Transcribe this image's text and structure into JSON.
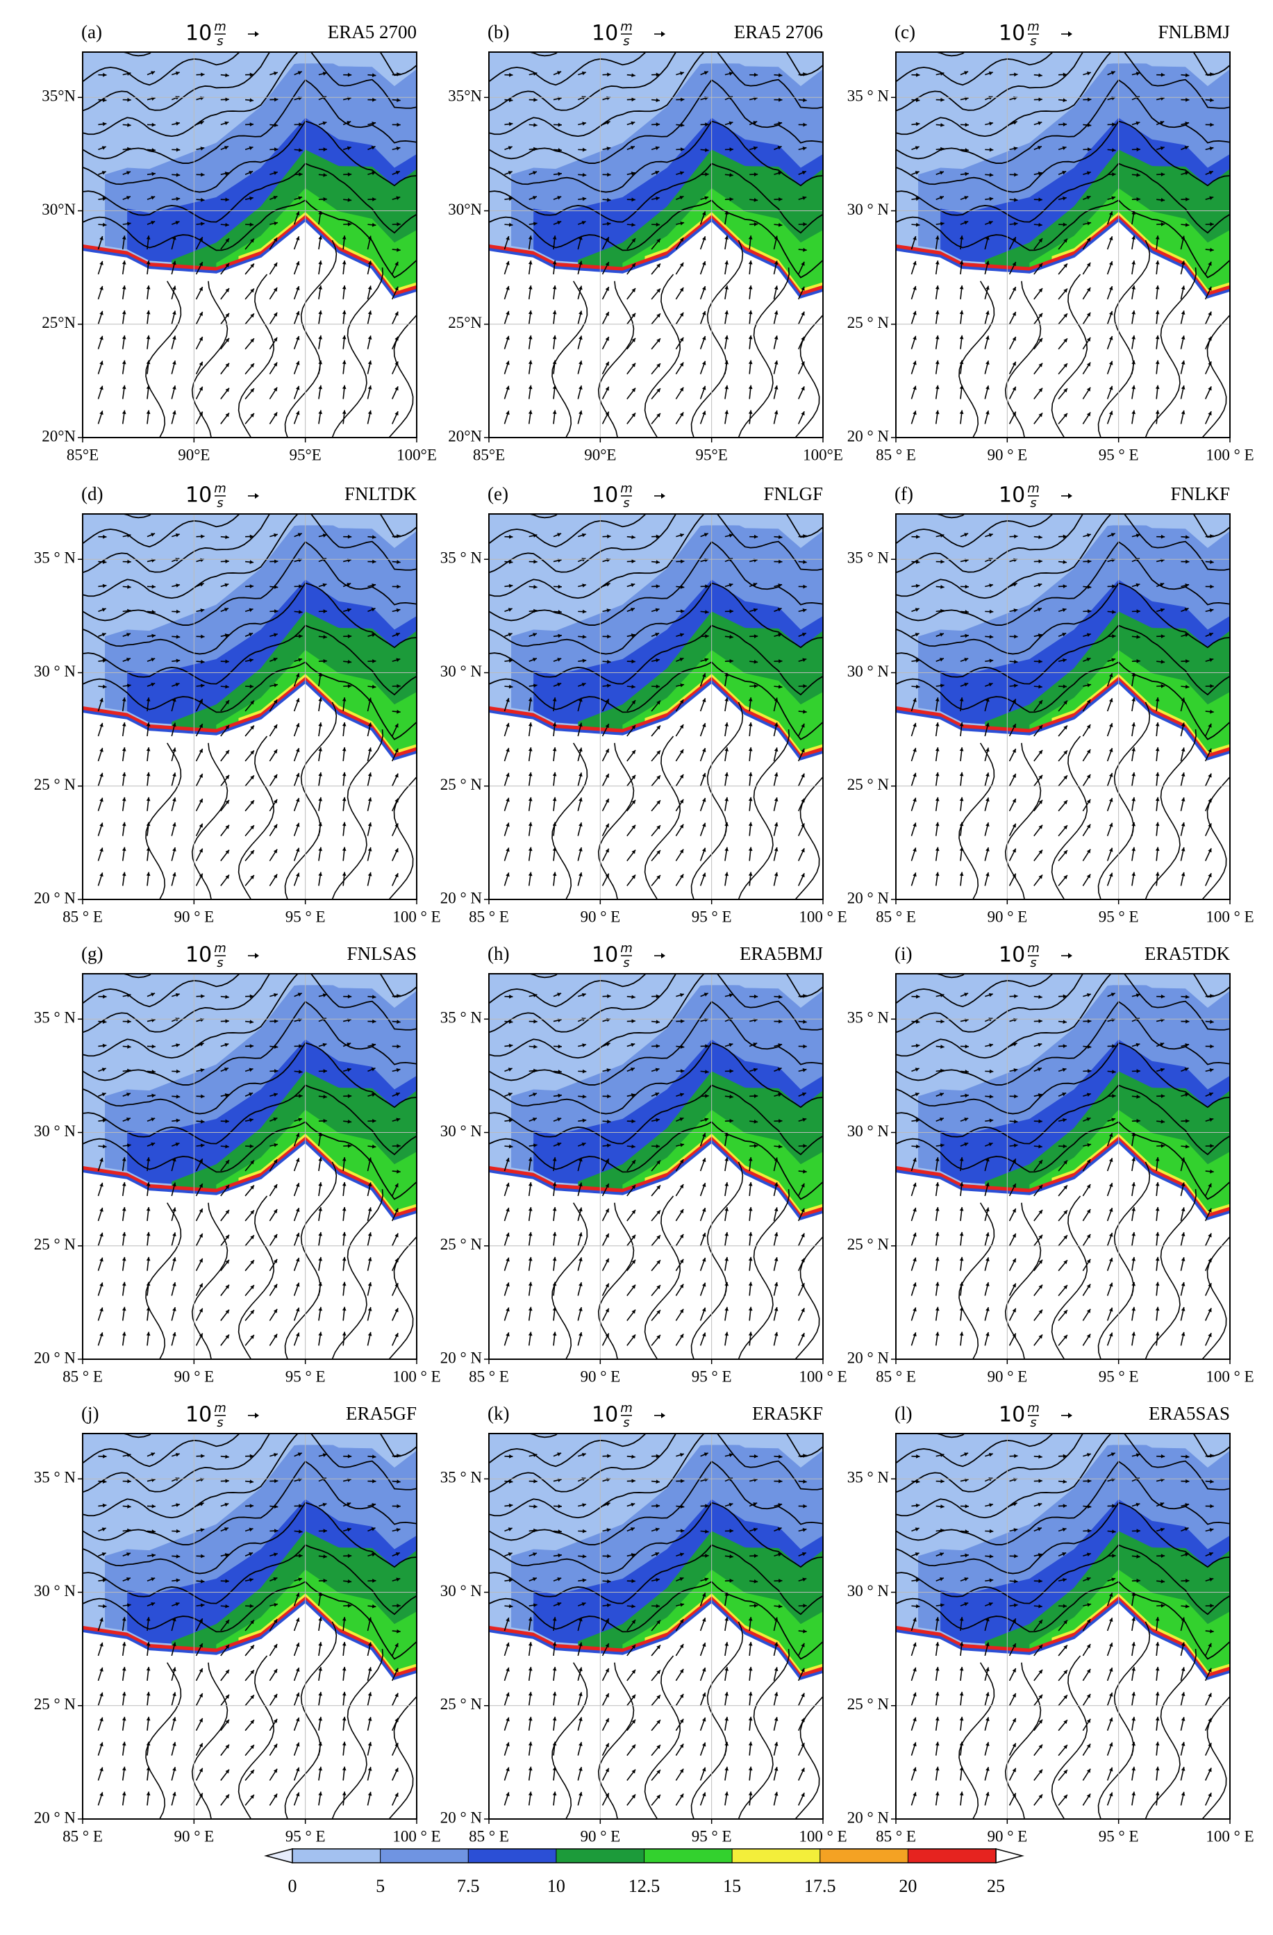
{
  "figure": {
    "vector_scale": {
      "value": "10",
      "numerator": "m",
      "denominator": "s"
    },
    "xlim": [
      85,
      100
    ],
    "ylim": [
      20,
      37
    ],
    "panels": [
      {
        "label": "(a)",
        "title": "ERA5 2700",
        "xticks": [
          {
            "value": 85,
            "label": "85°E"
          },
          {
            "value": 90,
            "label": "90°E"
          },
          {
            "value": 95,
            "label": "95°E"
          },
          {
            "value": 100,
            "label": "100°E"
          }
        ],
        "yticks": [
          {
            "value": 20,
            "label": "20°N"
          },
          {
            "value": 25,
            "label": "25°N"
          },
          {
            "value": 30,
            "label": "30°N"
          },
          {
            "value": 35,
            "label": "35°N"
          }
        ]
      },
      {
        "label": "(b)",
        "title": "ERA5 2706",
        "xticks": [
          {
            "value": 85,
            "label": "85°E"
          },
          {
            "value": 90,
            "label": "90°E"
          },
          {
            "value": 95,
            "label": "95°E"
          },
          {
            "value": 100,
            "label": "100°E"
          }
        ],
        "yticks": [
          {
            "value": 20,
            "label": "20°N"
          },
          {
            "value": 25,
            "label": "25°N"
          },
          {
            "value": 30,
            "label": "30°N"
          },
          {
            "value": 35,
            "label": "35°N"
          }
        ]
      },
      {
        "label": "(c)",
        "title": "FNLBMJ",
        "xticks": [
          {
            "value": 85,
            "label": "85 ° E"
          },
          {
            "value": 90,
            "label": "90 ° E"
          },
          {
            "value": 95,
            "label": "95 ° E"
          },
          {
            "value": 100,
            "label": "100 ° E"
          }
        ],
        "yticks": [
          {
            "value": 20,
            "label": "20 ° N"
          },
          {
            "value": 25,
            "label": "25 ° N"
          },
          {
            "value": 30,
            "label": "30 ° N"
          },
          {
            "value": 35,
            "label": "35 ° N"
          }
        ]
      },
      {
        "label": "(d)",
        "title": "FNLTDK",
        "xticks": [
          {
            "value": 85,
            "label": "85 ° E"
          },
          {
            "value": 90,
            "label": "90 ° E"
          },
          {
            "value": 95,
            "label": "95 ° E"
          },
          {
            "value": 100,
            "label": "100 ° E"
          }
        ],
        "yticks": [
          {
            "value": 20,
            "label": "20 ° N"
          },
          {
            "value": 25,
            "label": "25 ° N"
          },
          {
            "value": 30,
            "label": "30 ° N"
          },
          {
            "value": 35,
            "label": "35 ° N"
          }
        ]
      },
      {
        "label": "(e)",
        "title": "FNLGF",
        "xticks": [
          {
            "value": 85,
            "label": "85 ° E"
          },
          {
            "value": 90,
            "label": "90 ° E"
          },
          {
            "value": 95,
            "label": "95 ° E"
          },
          {
            "value": 100,
            "label": "100 ° E"
          }
        ],
        "yticks": [
          {
            "value": 20,
            "label": "20 ° N"
          },
          {
            "value": 25,
            "label": "25 ° N"
          },
          {
            "value": 30,
            "label": "30 ° N"
          },
          {
            "value": 35,
            "label": "35 ° N"
          }
        ]
      },
      {
        "label": "(f)",
        "title": "FNLKF",
        "xticks": [
          {
            "value": 85,
            "label": "85 ° E"
          },
          {
            "value": 90,
            "label": "90 ° E"
          },
          {
            "value": 95,
            "label": "95 ° E"
          },
          {
            "value": 100,
            "label": "100 ° E"
          }
        ],
        "yticks": [
          {
            "value": 20,
            "label": "20 ° N"
          },
          {
            "value": 25,
            "label": "25 ° N"
          },
          {
            "value": 30,
            "label": "30 ° N"
          },
          {
            "value": 35,
            "label": "35 ° N"
          }
        ]
      },
      {
        "label": "(g)",
        "title": "FNLSAS",
        "xticks": [
          {
            "value": 85,
            "label": "85 ° E"
          },
          {
            "value": 90,
            "label": "90 ° E"
          },
          {
            "value": 95,
            "label": "95 ° E"
          },
          {
            "value": 100,
            "label": "100 ° E"
          }
        ],
        "yticks": [
          {
            "value": 20,
            "label": "20 ° N"
          },
          {
            "value": 25,
            "label": "25 ° N"
          },
          {
            "value": 30,
            "label": "30 ° N"
          },
          {
            "value": 35,
            "label": "35 ° N"
          }
        ]
      },
      {
        "label": "(h)",
        "title": "ERA5BMJ",
        "xticks": [
          {
            "value": 85,
            "label": "85 ° E"
          },
          {
            "value": 90,
            "label": "90 ° E"
          },
          {
            "value": 95,
            "label": "95 ° E"
          },
          {
            "value": 100,
            "label": "100 ° E"
          }
        ],
        "yticks": [
          {
            "value": 20,
            "label": "20 ° N"
          },
          {
            "value": 25,
            "label": "25 ° N"
          },
          {
            "value": 30,
            "label": "30 ° N"
          },
          {
            "value": 35,
            "label": "35 ° N"
          }
        ]
      },
      {
        "label": "(i)",
        "title": "ERA5TDK",
        "xticks": [
          {
            "value": 85,
            "label": "85 ° E"
          },
          {
            "value": 90,
            "label": "90 ° E"
          },
          {
            "value": 95,
            "label": "95 ° E"
          },
          {
            "value": 100,
            "label": "100 ° E"
          }
        ],
        "yticks": [
          {
            "value": 20,
            "label": "20 ° N"
          },
          {
            "value": 25,
            "label": "25 ° N"
          },
          {
            "value": 30,
            "label": "30 ° N"
          },
          {
            "value": 35,
            "label": "35 ° N"
          }
        ]
      },
      {
        "label": "(j)",
        "title": "ERA5GF",
        "xticks": [
          {
            "value": 85,
            "label": "85 ° E"
          },
          {
            "value": 90,
            "label": "90 ° E"
          },
          {
            "value": 95,
            "label": "95 ° E"
          },
          {
            "value": 100,
            "label": "100 ° E"
          }
        ],
        "yticks": [
          {
            "value": 20,
            "label": "20 ° N"
          },
          {
            "value": 25,
            "label": "25 ° N"
          },
          {
            "value": 30,
            "label": "30 ° N"
          },
          {
            "value": 35,
            "label": "35 ° N"
          }
        ]
      },
      {
        "label": "(k)",
        "title": "ERA5KF",
        "xticks": [
          {
            "value": 85,
            "label": "85 ° E"
          },
          {
            "value": 90,
            "label": "90 ° E"
          },
          {
            "value": 95,
            "label": "95 ° E"
          },
          {
            "value": 100,
            "label": "100 ° E"
          }
        ],
        "yticks": [
          {
            "value": 20,
            "label": "20 ° N"
          },
          {
            "value": 25,
            "label": "25 ° N"
          },
          {
            "value": 30,
            "label": "30 ° N"
          },
          {
            "value": 35,
            "label": "35 ° N"
          }
        ]
      },
      {
        "label": "(l)",
        "title": "ERA5SAS",
        "xticks": [
          {
            "value": 85,
            "label": "85 ° E"
          },
          {
            "value": 90,
            "label": "90 ° E"
          },
          {
            "value": 95,
            "label": "95 ° E"
          },
          {
            "value": 100,
            "label": "100 ° E"
          }
        ],
        "yticks": [
          {
            "value": 20,
            "label": "20 ° N"
          },
          {
            "value": 25,
            "label": "25 ° N"
          },
          {
            "value": 30,
            "label": "30 ° N"
          },
          {
            "value": 35,
            "label": "35 ° N"
          }
        ]
      }
    ],
    "colorbar": {
      "ticks": [
        0,
        5,
        7.5,
        10,
        12.5,
        15,
        17.5,
        20,
        25
      ],
      "colors": [
        "#a3c1f0",
        "#6f94e2",
        "#2b4fd6",
        "#1c9b3a",
        "#33d12e",
        "#f3ee3a",
        "#f4a223",
        "#e6231f"
      ]
    }
  }
}
